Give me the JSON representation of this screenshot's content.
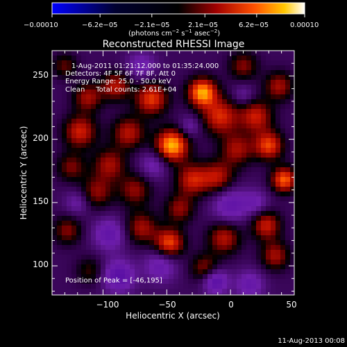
{
  "chart_data": {
    "type": "heatmap",
    "title": "Reconstructed RHESSI Image",
    "xlabel": "Heliocentric X (arcsec)",
    "ylabel": "Heliocentric Y (arcsec)",
    "xlim": [
      -140,
      50
    ],
    "ylim": [
      77,
      270
    ],
    "x_ticks": [
      -100,
      -50,
      0,
      50
    ],
    "x_tick_labels": [
      "−100",
      "−50",
      "0",
      "50"
    ],
    "y_ticks": [
      100,
      150,
      200,
      250
    ],
    "y_tick_labels": [
      "100",
      "150",
      "200",
      "250"
    ],
    "colorbar": {
      "range": [
        -0.0001,
        0.0001
      ],
      "ticks": [
        -0.0001,
        -6.2e-05,
        -2.1e-05,
        2.1e-05,
        6.2e-05,
        0.0001
      ],
      "tick_labels": [
        "−0.00010",
        "−6.2e−05",
        "−2.1e−05",
        "2.1e−05",
        "6.2e−05",
        "0.00010"
      ],
      "units_prefix": "(photons cm",
      "units_exp1": "−2",
      "units_mid": " s",
      "units_exp2": "−1",
      "units_mid2": " asec",
      "units_exp3": "−2",
      "units_suffix": ")"
    },
    "annotations": [
      "1-Aug-2011 01:21:12.000 to 01:35:24.000",
      "Detectors: 4F 5F 6F 7F 8F, Att 0",
      "Energy Range: 25.0 - 50.0 keV",
      "Clean     Total counts: 2.61E+04"
    ],
    "peak_label": "Position of Peak = [-46,195]",
    "peak": [
      -46,
      195
    ],
    "blobs": [
      {
        "x": -46,
        "y": 195,
        "amp": 1.0,
        "s": 9
      },
      {
        "x": -22,
        "y": 237,
        "amp": 0.95,
        "s": 8
      },
      {
        "x": -8,
        "y": 218,
        "amp": 0.65,
        "s": 10
      },
      {
        "x": -62,
        "y": 232,
        "amp": 0.7,
        "s": 9
      },
      {
        "x": -90,
        "y": 242,
        "amp": 0.55,
        "s": 8
      },
      {
        "x": -112,
        "y": 233,
        "amp": 0.5,
        "s": 8
      },
      {
        "x": -118,
        "y": 206,
        "amp": 0.62,
        "s": 9
      },
      {
        "x": -80,
        "y": 205,
        "amp": 0.55,
        "s": 9
      },
      {
        "x": -95,
        "y": 180,
        "amp": 0.5,
        "s": 9
      },
      {
        "x": -125,
        "y": 178,
        "amp": 0.4,
        "s": 8
      },
      {
        "x": -105,
        "y": 158,
        "amp": 0.45,
        "s": 9
      },
      {
        "x": -75,
        "y": 160,
        "amp": 0.45,
        "s": 9
      },
      {
        "x": -30,
        "y": 168,
        "amp": 0.6,
        "s": 9
      },
      {
        "x": -10,
        "y": 170,
        "amp": 0.55,
        "s": 9
      },
      {
        "x": 5,
        "y": 192,
        "amp": 0.5,
        "s": 9
      },
      {
        "x": 20,
        "y": 218,
        "amp": 0.6,
        "s": 9
      },
      {
        "x": 30,
        "y": 195,
        "amp": 0.72,
        "s": 8
      },
      {
        "x": 42,
        "y": 168,
        "amp": 0.8,
        "s": 7
      },
      {
        "x": 38,
        "y": 242,
        "amp": 0.5,
        "s": 8
      },
      {
        "x": 28,
        "y": 132,
        "amp": 0.6,
        "s": 8
      },
      {
        "x": 35,
        "y": 108,
        "amp": 0.5,
        "s": 8
      },
      {
        "x": -5,
        "y": 122,
        "amp": 0.55,
        "s": 9
      },
      {
        "x": -20,
        "y": 98,
        "amp": 0.45,
        "s": 8
      },
      {
        "x": -48,
        "y": 118,
        "amp": 0.75,
        "s": 8
      },
      {
        "x": -70,
        "y": 130,
        "amp": 0.5,
        "s": 9
      },
      {
        "x": -40,
        "y": 145,
        "amp": 0.45,
        "s": 8
      },
      {
        "x": -128,
        "y": 128,
        "amp": 0.42,
        "s": 8
      },
      {
        "x": -110,
        "y": 96,
        "amp": 0.3,
        "s": 8
      },
      {
        "x": -130,
        "y": 258,
        "amp": 0.35,
        "s": 7
      },
      {
        "x": 10,
        "y": 258,
        "amp": 0.42,
        "s": 8
      },
      {
        "x": -95,
        "y": 125,
        "amp": -0.45,
        "s": 9
      },
      {
        "x": -88,
        "y": 92,
        "amp": -0.55,
        "s": 9
      },
      {
        "x": -12,
        "y": 88,
        "amp": -0.6,
        "s": 7
      },
      {
        "x": 0,
        "y": 148,
        "amp": -0.45,
        "s": 10
      },
      {
        "x": -55,
        "y": 100,
        "amp": -0.4,
        "s": 9
      },
      {
        "x": 15,
        "y": 85,
        "amp": -0.4,
        "s": 8
      },
      {
        "x": -70,
        "y": 258,
        "amp": -0.35,
        "s": 8
      },
      {
        "x": -32,
        "y": 210,
        "amp": -0.3,
        "s": 6
      },
      {
        "x": -60,
        "y": 180,
        "amp": -0.35,
        "s": 8
      },
      {
        "x": 10,
        "y": 235,
        "amp": -0.25,
        "s": 6
      },
      {
        "x": -120,
        "y": 150,
        "amp": -0.3,
        "s": 7
      },
      {
        "x": 20,
        "y": 150,
        "amp": -0.3,
        "s": 7
      }
    ]
  },
  "footer": {
    "timestamp": "11-Aug-2013 00:08"
  }
}
